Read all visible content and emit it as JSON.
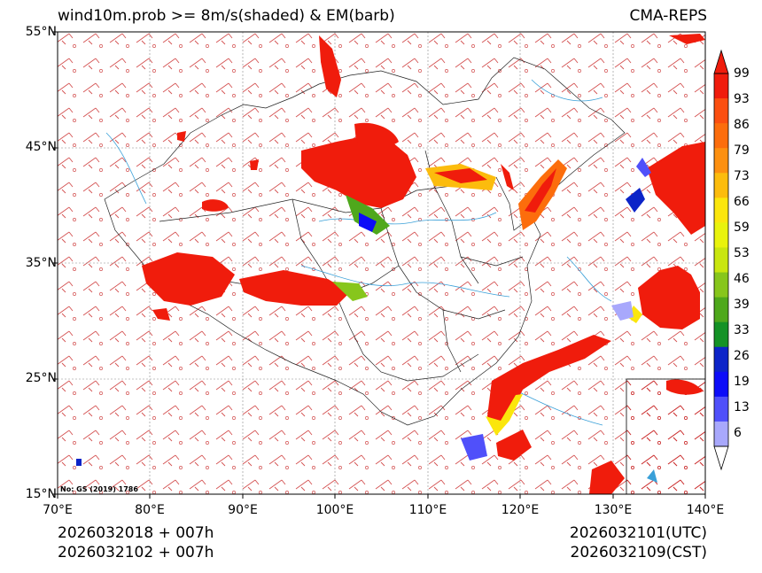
{
  "title": {
    "left": "wind10m.prob >= 8m/s(shaded) & EM(barb)",
    "right": "CMA-REPS"
  },
  "axes": {
    "lat_labels": [
      "55°N",
      "45°N",
      "35°N",
      "25°N",
      "15°N"
    ],
    "lon_labels": [
      "70°E",
      "80°E",
      "90°E",
      "100°E",
      "110°E",
      "120°E",
      "130°E",
      "140°E"
    ]
  },
  "colorbar": {
    "levels": [
      "99",
      "93",
      "86",
      "79",
      "73",
      "66",
      "59",
      "53",
      "46",
      "39",
      "33",
      "26",
      "19",
      "13",
      "6"
    ],
    "colors": [
      "#f01c0c",
      "#fb4f10",
      "#fc6d0c",
      "#fd9010",
      "#fcbc0d",
      "#fbe60c",
      "#e9f30c",
      "#c9e60f",
      "#87c61c",
      "#4fa81c",
      "#149226",
      "#0c24c8",
      "#0c0cf8",
      "#5050fa",
      "#a8a8fc"
    ]
  },
  "license": "No: GS (2019) 1786",
  "time": {
    "init_utc": "2026032018  +  007h",
    "init_cst": "2026032102  +  007h",
    "valid_utc": "2026032101(UTC)",
    "valid_cst": "2026032109(CST)"
  },
  "colors": {
    "barb": "#cc3333",
    "river": "#3aa0d8",
    "border": "#222222",
    "grid": "#888888"
  }
}
